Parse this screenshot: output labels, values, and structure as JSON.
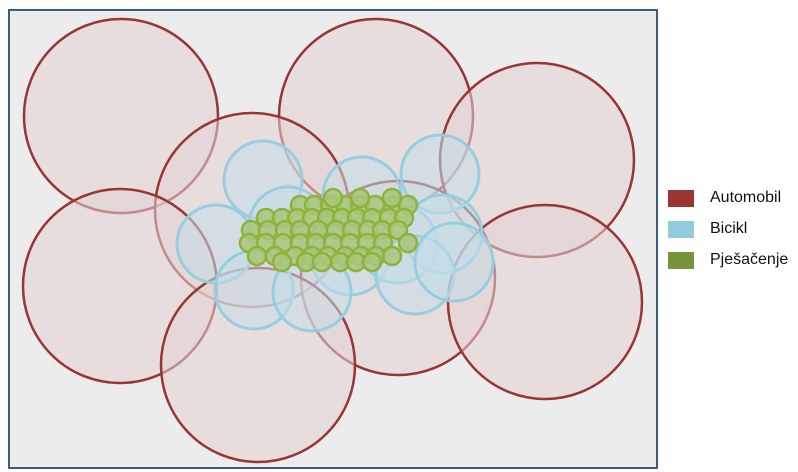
{
  "colors": {
    "panel_fill": "#ececec",
    "panel_border": "#3b5c87",
    "car_stroke": "#983535",
    "car_fill": "#e4d1d2",
    "bike_stroke": "#96cde0",
    "bike_fill": "#c3dde7",
    "walk_stroke": "#8db33a",
    "walk_fill": "#a9c67a"
  },
  "legend": [
    {
      "label": "Automobil",
      "color": "#9a3532",
      "key": "car"
    },
    {
      "label": "Bicikl",
      "color": "#93cddd",
      "key": "bike"
    },
    {
      "label": "Pješačenje",
      "color": "#77933c",
      "key": "walk"
    }
  ]
}
